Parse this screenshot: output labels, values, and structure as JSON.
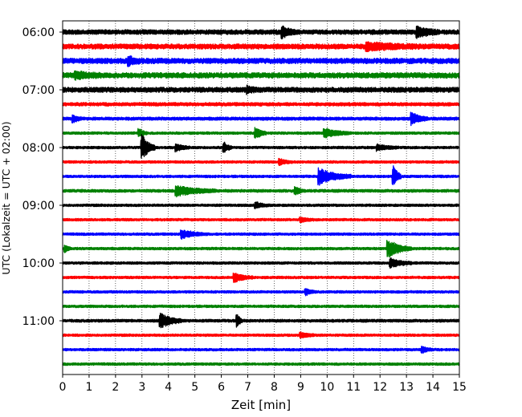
{
  "chart_data": {
    "type": "line",
    "subtype": "helicorder",
    "title": "",
    "xlabel": "Zeit  [min]",
    "ylabel": "UTC (Lokalzeit = UTC + 02:00)",
    "xlim": [
      0,
      15
    ],
    "x_ticks": [
      "0",
      "1",
      "2",
      "3",
      "4",
      "5",
      "6",
      "7",
      "8",
      "9",
      "10",
      "11",
      "12",
      "13",
      "14",
      "15"
    ],
    "y_tick_labels": [
      "06:00",
      "07:00",
      "08:00",
      "09:00",
      "10:00",
      "11:00"
    ],
    "x_grid": "dotted",
    "trace_interval_minutes": 15,
    "trace_colors": [
      "#000000",
      "#ff0000",
      "#0000ff",
      "#008000"
    ],
    "trace_start_times": [
      "06:00",
      "06:15",
      "06:30",
      "06:45",
      "07:00",
      "07:15",
      "07:30",
      "07:45",
      "08:00",
      "08:15",
      "08:30",
      "08:45",
      "09:00",
      "09:15",
      "09:30",
      "09:45",
      "10:00",
      "10:15",
      "10:30",
      "10:45",
      "11:00",
      "11:15",
      "11:30",
      "11:45"
    ],
    "noise_level": [
      0.3,
      0.32,
      0.34,
      0.34,
      0.32,
      0.22,
      0.2,
      0.16,
      0.16,
      0.16,
      0.16,
      0.18,
      0.16,
      0.16,
      0.16,
      0.16,
      0.16,
      0.16,
      0.16,
      0.16,
      0.18,
      0.16,
      0.16,
      0.16
    ],
    "events": [
      {
        "trace": 0,
        "minute": 8.3,
        "amp": 0.9,
        "dur": 0.5
      },
      {
        "trace": 0,
        "minute": 13.4,
        "amp": 0.9,
        "dur": 0.8
      },
      {
        "trace": 1,
        "minute": 11.5,
        "amp": 0.6,
        "dur": 2.0
      },
      {
        "trace": 2,
        "minute": 2.5,
        "amp": 0.7,
        "dur": 0.4
      },
      {
        "trace": 3,
        "minute": 0.5,
        "amp": 0.5,
        "dur": 1.0
      },
      {
        "trace": 4,
        "minute": 7.0,
        "amp": 0.5,
        "dur": 0.4
      },
      {
        "trace": 6,
        "minute": 0.4,
        "amp": 0.6,
        "dur": 0.3
      },
      {
        "trace": 6,
        "minute": 13.2,
        "amp": 1.0,
        "dur": 0.6
      },
      {
        "trace": 7,
        "minute": 2.9,
        "amp": 0.7,
        "dur": 0.3
      },
      {
        "trace": 7,
        "minute": 7.3,
        "amp": 1.0,
        "dur": 0.4
      },
      {
        "trace": 7,
        "minute": 9.9,
        "amp": 0.8,
        "dur": 1.0
      },
      {
        "trace": 8,
        "minute": 3.0,
        "amp": 2.3,
        "dur": 0.5
      },
      {
        "trace": 8,
        "minute": 4.3,
        "amp": 0.6,
        "dur": 0.5
      },
      {
        "trace": 8,
        "minute": 6.1,
        "amp": 0.9,
        "dur": 0.3
      },
      {
        "trace": 8,
        "minute": 11.9,
        "amp": 0.5,
        "dur": 0.8
      },
      {
        "trace": 9,
        "minute": 8.2,
        "amp": 0.5,
        "dur": 0.5
      },
      {
        "trace": 10,
        "minute": 9.7,
        "amp": 1.4,
        "dur": 1.2
      },
      {
        "trace": 10,
        "minute": 12.5,
        "amp": 2.0,
        "dur": 0.3
      },
      {
        "trace": 11,
        "minute": 4.3,
        "amp": 0.9,
        "dur": 1.5
      },
      {
        "trace": 11,
        "minute": 8.8,
        "amp": 0.7,
        "dur": 0.3
      },
      {
        "trace": 12,
        "minute": 7.3,
        "amp": 0.5,
        "dur": 0.5
      },
      {
        "trace": 13,
        "minute": 9.0,
        "amp": 0.4,
        "dur": 0.5
      },
      {
        "trace": 14,
        "minute": 4.5,
        "amp": 0.7,
        "dur": 1.0
      },
      {
        "trace": 15,
        "minute": 0.1,
        "amp": 0.6,
        "dur": 0.2
      },
      {
        "trace": 15,
        "minute": 12.3,
        "amp": 1.5,
        "dur": 0.9
      },
      {
        "trace": 16,
        "minute": 12.4,
        "amp": 0.8,
        "dur": 0.8
      },
      {
        "trace": 17,
        "minute": 6.5,
        "amp": 0.8,
        "dur": 0.7
      },
      {
        "trace": 18,
        "minute": 9.2,
        "amp": 0.5,
        "dur": 0.4
      },
      {
        "trace": 20,
        "minute": 3.7,
        "amp": 1.3,
        "dur": 0.8
      },
      {
        "trace": 20,
        "minute": 6.6,
        "amp": 1.1,
        "dur": 0.2
      },
      {
        "trace": 21,
        "minute": 9.0,
        "amp": 0.5,
        "dur": 0.5
      },
      {
        "trace": 22,
        "minute": 13.6,
        "amp": 0.5,
        "dur": 0.4
      }
    ]
  }
}
